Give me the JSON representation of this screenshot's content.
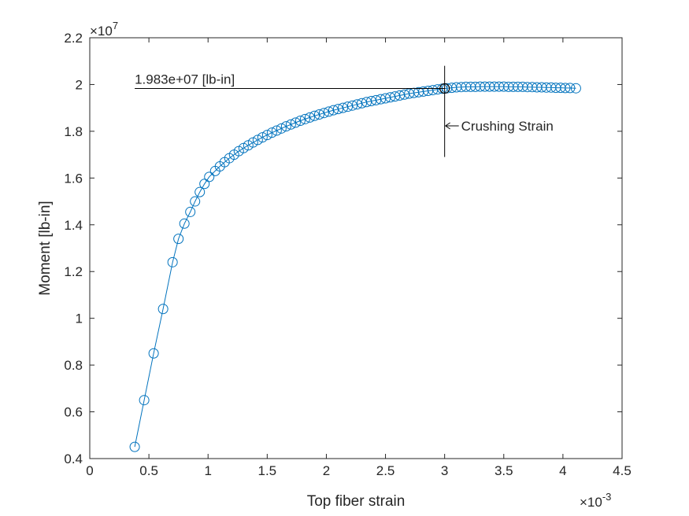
{
  "chart_data": {
    "type": "scatter",
    "title": "",
    "xlabel": "Top fiber strain",
    "ylabel": "Moment [lb-in]",
    "x_multiplier_label": "×10",
    "x_multiplier_exp": "-3",
    "y_multiplier_label": "×10",
    "y_multiplier_exp": "7",
    "xlim": [
      0,
      4.5
    ],
    "ylim": [
      0.4,
      2.2
    ],
    "x_ticks": [
      0,
      0.5,
      1,
      1.5,
      2,
      2.5,
      3,
      3.5,
      4,
      4.5
    ],
    "x_tick_labels": [
      "0",
      "0.5",
      "1",
      "1.5",
      "2",
      "2.5",
      "3",
      "3.5",
      "4",
      "4.5"
    ],
    "y_ticks": [
      0.4,
      0.6,
      0.8,
      1.0,
      1.2,
      1.4,
      1.6,
      1.8,
      2.0,
      2.2
    ],
    "y_tick_labels": [
      "0.4",
      "0.6",
      "0.8",
      "1",
      "1.2",
      "1.4",
      "1.6",
      "1.8",
      "2",
      "2.2"
    ],
    "grid": false,
    "series": [
      {
        "color": "#0072bd",
        "marker": "circle-open",
        "x": [
          0.38,
          0.46,
          0.54,
          0.62,
          0.7,
          0.75,
          0.8,
          0.85,
          0.89,
          0.93,
          0.97,
          1.01,
          1.06,
          1.1,
          1.14,
          1.18,
          1.22,
          1.26,
          1.3,
          1.34,
          1.38,
          1.42,
          1.46,
          1.5,
          1.54,
          1.58,
          1.62,
          1.66,
          1.7,
          1.74,
          1.78,
          1.82,
          1.86,
          1.9,
          1.94,
          1.98,
          2.02,
          2.06,
          2.1,
          2.14,
          2.18,
          2.22,
          2.26,
          2.3,
          2.34,
          2.38,
          2.42,
          2.46,
          2.5,
          2.54,
          2.58,
          2.62,
          2.66,
          2.7,
          2.74,
          2.78,
          2.82,
          2.86,
          2.9,
          2.94,
          2.98,
          3.02,
          3.06,
          3.1,
          3.14,
          3.18,
          3.22,
          3.26,
          3.3,
          3.34,
          3.38,
          3.42,
          3.46,
          3.5,
          3.54,
          3.58,
          3.62,
          3.66,
          3.7,
          3.74,
          3.78,
          3.82,
          3.86,
          3.9,
          3.94,
          3.98,
          4.02,
          4.06,
          4.11
        ],
        "y": [
          0.45,
          0.65,
          0.85,
          1.04,
          1.24,
          1.34,
          1.405,
          1.455,
          1.5,
          1.54,
          1.575,
          1.605,
          1.63,
          1.65,
          1.668,
          1.685,
          1.7,
          1.715,
          1.728,
          1.74,
          1.752,
          1.763,
          1.774,
          1.784,
          1.794,
          1.803,
          1.812,
          1.821,
          1.829,
          1.837,
          1.845,
          1.852,
          1.859,
          1.866,
          1.872,
          1.878,
          1.884,
          1.89,
          1.895,
          1.9,
          1.905,
          1.91,
          1.915,
          1.92,
          1.925,
          1.929,
          1.933,
          1.937,
          1.941,
          1.945,
          1.949,
          1.953,
          1.957,
          1.961,
          1.964,
          1.967,
          1.97,
          1.973,
          1.976,
          1.979,
          1.982,
          1.984,
          1.986,
          1.988,
          1.989,
          1.99,
          1.99,
          1.99,
          1.991,
          1.991,
          1.991,
          1.991,
          1.991,
          1.991,
          1.99,
          1.99,
          1.99,
          1.99,
          1.989,
          1.989,
          1.988,
          1.988,
          1.987,
          1.987,
          1.986,
          1.986,
          1.985,
          1.985,
          1.984
        ]
      }
    ],
    "highlight_point": {
      "x": 3.0,
      "y": 1.983
    },
    "annotations": {
      "max_moment_label": "1.983e+07 [lb-in]",
      "crushing_label": "Crushing Strain",
      "crushing_line_x": 3.0,
      "crushing_line_y_range": [
        1.69,
        2.08
      ],
      "max_moment_line_x_range": [
        0.38,
        3.0
      ]
    }
  }
}
